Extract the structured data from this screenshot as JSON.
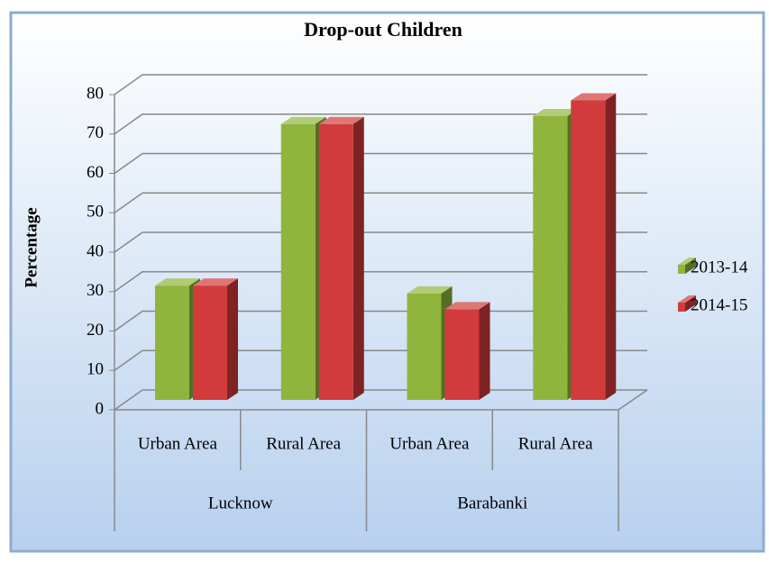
{
  "chart_data": {
    "type": "bar3d",
    "title": "Drop-out Children",
    "y_label": "Percentage",
    "groups": [
      {
        "label": "Lucknow",
        "categories": [
          "Urban Area",
          "Rural Area"
        ]
      },
      {
        "label": "Barabanki",
        "categories": [
          "Urban Area",
          "Rural Area"
        ]
      }
    ],
    "series": [
      {
        "name": "2013-14",
        "color": "#8fb53c",
        "values": [
          29,
          70,
          27,
          72
        ]
      },
      {
        "name": "2014-15",
        "color": "#d13b3b",
        "values": [
          29,
          70,
          23,
          76
        ]
      }
    ],
    "ylim": [
      0,
      80
    ],
    "yticks": [
      0,
      10,
      20,
      30,
      40,
      50,
      60,
      70,
      80
    ],
    "grid": true,
    "legend": "right"
  }
}
